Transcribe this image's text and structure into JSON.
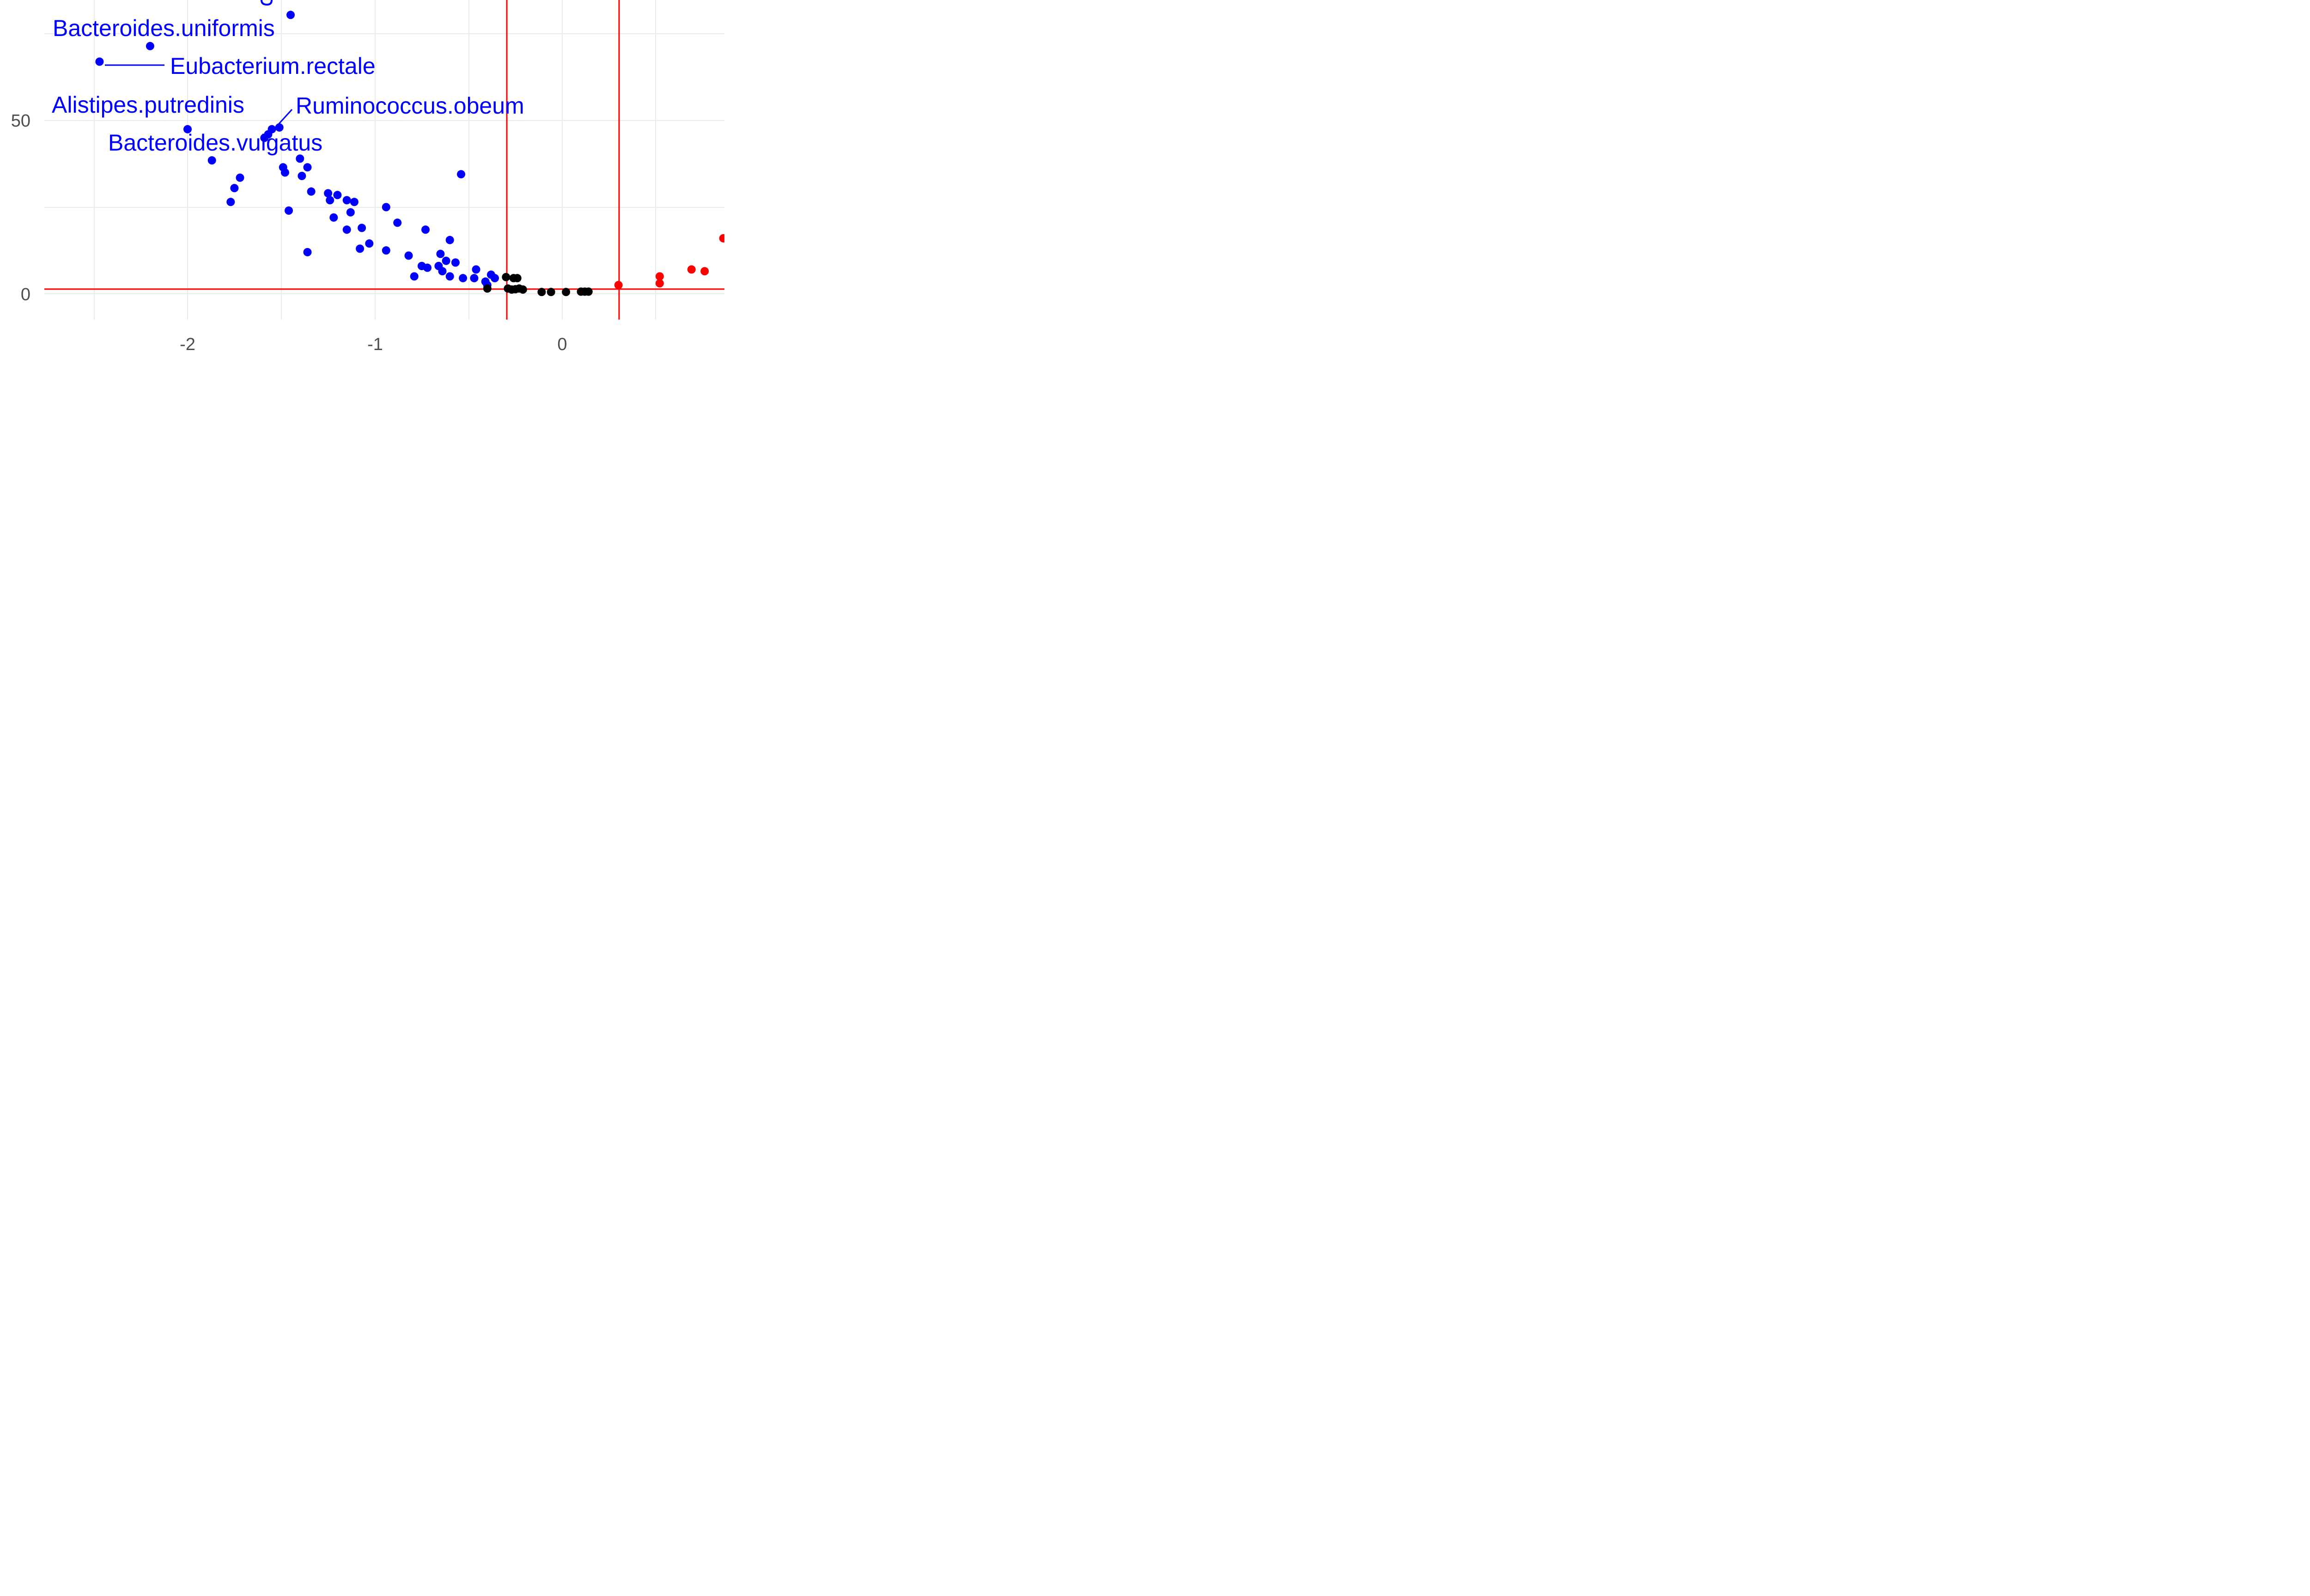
{
  "chart_data": {
    "type": "scatter",
    "xlabel": "",
    "ylabel": "",
    "x_ticks": [
      -2,
      -1,
      0
    ],
    "y_ticks": [
      0,
      50
    ],
    "xlim": [
      -2.55,
      0.9
    ],
    "ylim": [
      -8,
      85
    ],
    "grid": true,
    "reference_lines": {
      "x": [
        -0.3,
        0.3
      ],
      "y": [
        1.5
      ],
      "color": "#ff0000"
    },
    "colors": {
      "down": "#0000ff",
      "ns": "#000000",
      "up": "#ff0000",
      "grid": "#ebebeb"
    },
    "series": [
      {
        "color": "#0000ff",
        "points": [
          [
            -1.45,
            80.5
          ],
          [
            -2.2,
            71.5
          ],
          [
            -2.47,
            67
          ],
          [
            -2.0,
            47.5
          ],
          [
            -1.87,
            38.5
          ],
          [
            -1.55,
            47.5
          ],
          [
            -1.57,
            46
          ],
          [
            -1.59,
            45
          ],
          [
            -1.51,
            48
          ],
          [
            -1.49,
            36.5
          ],
          [
            -1.48,
            35
          ],
          [
            -1.4,
            39
          ],
          [
            -1.36,
            36.5
          ],
          [
            -1.39,
            34
          ],
          [
            -1.34,
            29.5
          ],
          [
            -1.72,
            33.5
          ],
          [
            -1.75,
            30.5
          ],
          [
            -1.77,
            26.5
          ],
          [
            -1.46,
            24
          ],
          [
            -1.36,
            12
          ],
          [
            -1.25,
            29
          ],
          [
            -1.2,
            28.5
          ],
          [
            -1.24,
            27
          ],
          [
            -1.15,
            27
          ],
          [
            -1.11,
            26.5
          ],
          [
            -1.13,
            23.5
          ],
          [
            -1.22,
            22
          ],
          [
            -1.15,
            18.5
          ],
          [
            -1.07,
            19
          ],
          [
            -1.03,
            14.5
          ],
          [
            -1.08,
            13
          ],
          [
            -0.94,
            25
          ],
          [
            -0.88,
            20.5
          ],
          [
            -0.94,
            12.5
          ],
          [
            -0.82,
            11
          ],
          [
            -0.73,
            18.5
          ],
          [
            -0.75,
            8
          ],
          [
            -0.72,
            7.5
          ],
          [
            -0.79,
            5
          ],
          [
            -0.65,
            11.5
          ],
          [
            -0.62,
            9.5
          ],
          [
            -0.6,
            15.5
          ],
          [
            -0.57,
            9
          ],
          [
            -0.66,
            8
          ],
          [
            -0.64,
            6.5
          ],
          [
            -0.6,
            5
          ],
          [
            -0.54,
            34.5
          ],
          [
            -0.53,
            4.5
          ],
          [
            -0.46,
            7
          ],
          [
            -0.47,
            4.5
          ],
          [
            -0.38,
            5.5
          ],
          [
            -0.36,
            4.5
          ],
          [
            -0.41,
            3.5
          ],
          [
            -0.4,
            2.5
          ]
        ]
      },
      {
        "color": "#000000",
        "points": [
          [
            -0.4,
            1.5
          ],
          [
            -0.3,
            4.8
          ],
          [
            -0.26,
            4.5
          ],
          [
            -0.24,
            4.5
          ],
          [
            -0.29,
            1.5
          ],
          [
            -0.27,
            1.2
          ],
          [
            -0.25,
            1.3
          ],
          [
            -0.23,
            1.5
          ],
          [
            -0.21,
            1.2
          ],
          [
            -0.11,
            0.5
          ],
          [
            -0.06,
            0.5
          ],
          [
            0.02,
            0.5
          ],
          [
            0.1,
            0.6
          ],
          [
            0.12,
            0.6
          ],
          [
            0.14,
            0.6
          ]
        ]
      },
      {
        "color": "#ff0000",
        "points": [
          [
            0.3,
            2.5
          ],
          [
            0.52,
            5
          ],
          [
            0.52,
            3
          ],
          [
            0.69,
            7
          ],
          [
            0.76,
            6.5
          ],
          [
            0.86,
            16
          ]
        ]
      }
    ],
    "annotations": [
      {
        "text": "Bacteroides.uniformis",
        "color": "#0000ff"
      },
      {
        "text": "Eubacterium.rectale",
        "color": "#0000ff"
      },
      {
        "text": "Alistipes.putredinis",
        "color": "#0000ff"
      },
      {
        "text": "Ruminococcus.obeum",
        "color": "#0000ff"
      },
      {
        "text": "Bacteroides.vulgatus",
        "color": "#0000ff"
      }
    ]
  }
}
